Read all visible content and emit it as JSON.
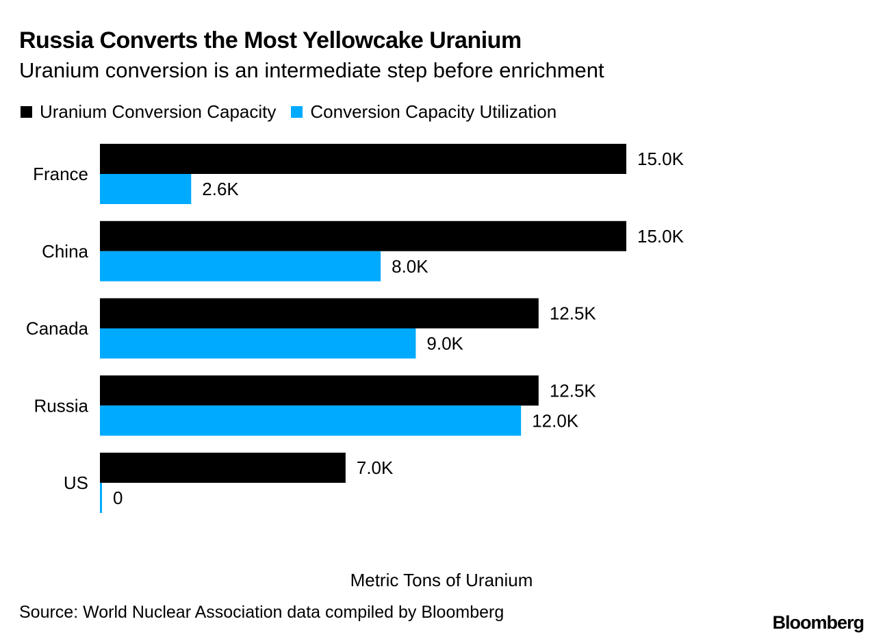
{
  "header": {
    "title": "Russia Converts the Most Yellowcake Uranium",
    "subtitle": "Uranium conversion is an intermediate step before enrichment"
  },
  "legend": {
    "items": [
      {
        "label": "Uranium Conversion Capacity",
        "color": "#000000"
      },
      {
        "label": "Conversion Capacity Utilization",
        "color": "#00aaff"
      }
    ],
    "placement": "top-left"
  },
  "chart_data": {
    "type": "bar",
    "orientation": "horizontal",
    "title": "Russia Converts the Most Yellowcake Uranium",
    "subtitle": "Uranium conversion is an intermediate step before enrichment",
    "categories": [
      "France",
      "China",
      "Canada",
      "Russia",
      "US"
    ],
    "series": [
      {
        "name": "Uranium Conversion Capacity",
        "color": "#000000",
        "values": [
          15000,
          15000,
          12500,
          12500,
          7000
        ],
        "labels": [
          "15.0K",
          "15.0K",
          "12.5K",
          "12.5K",
          "7.0K"
        ]
      },
      {
        "name": "Conversion Capacity Utilization",
        "color": "#00aaff",
        "values": [
          2600,
          8000,
          9000,
          12000,
          0
        ],
        "labels": [
          "2.6K",
          "8.0K",
          "9.0K",
          "12.0K",
          "0"
        ]
      }
    ],
    "xlabel": "Metric Tons of Uranium",
    "ylabel": "",
    "xlim": [
      0,
      15000
    ],
    "grid": false,
    "legend_position": "top-left"
  },
  "footer": {
    "source": "Source: World Nuclear Association data compiled by Bloomberg",
    "brand": "Bloomberg"
  }
}
